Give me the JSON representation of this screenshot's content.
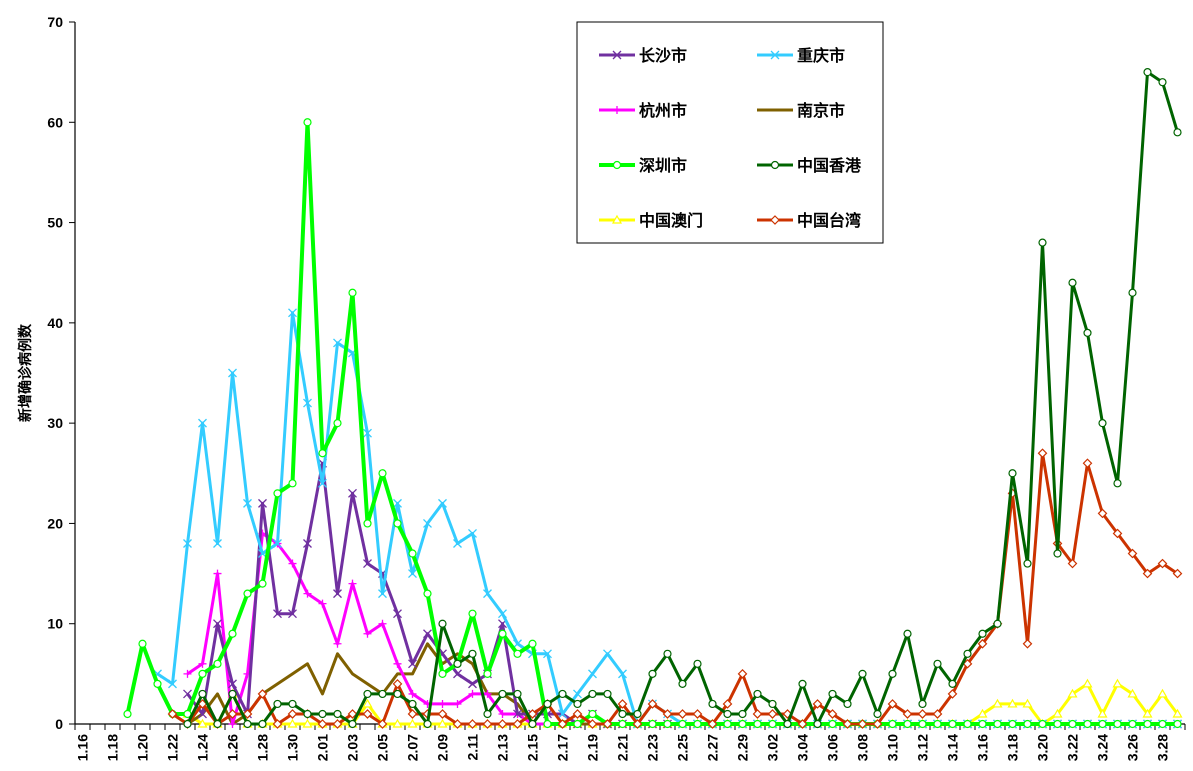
{
  "chart_data": {
    "type": "line",
    "ylabel": "新增确诊病例数",
    "ylim": [
      0,
      70
    ],
    "yticks": [
      0,
      10,
      20,
      30,
      40,
      50,
      60,
      70
    ],
    "ytick_labels": [
      "0",
      "10",
      "20",
      "30",
      "40",
      "50",
      "60",
      "70"
    ],
    "x": [
      "1.16",
      "1.17",
      "1.18",
      "1.19",
      "1.20",
      "1.21",
      "1.22",
      "1.23",
      "1.24",
      "1.25",
      "1.26",
      "1.27",
      "1.28",
      "1.29",
      "1.30",
      "1.31",
      "2.01",
      "2.02",
      "2.03",
      "2.04",
      "2.05",
      "2.06",
      "2.07",
      "2.08",
      "2.09",
      "2.10",
      "2.11",
      "2.12",
      "2.13",
      "2.14",
      "2.15",
      "2.16",
      "2.17",
      "2.18",
      "2.19",
      "2.20",
      "2.21",
      "2.22",
      "2.23",
      "2.24",
      "2.25",
      "2.26",
      "2.27",
      "2.28",
      "2.29",
      "3.01",
      "3.02",
      "3.03",
      "3.04",
      "3.05",
      "3.06",
      "3.07",
      "3.08",
      "3.09",
      "3.10",
      "3.11",
      "3.12",
      "3.13",
      "3.14",
      "3.15",
      "3.16",
      "3.17",
      "3.18",
      "3.19",
      "3.20",
      "3.21",
      "3.22",
      "3.23",
      "3.24",
      "3.25",
      "3.26",
      "3.27",
      "3.28",
      "3.29"
    ],
    "x_tick_labels": [
      "1.16",
      "1.18",
      "1.20",
      "1.22",
      "1.24",
      "1.26",
      "1.28",
      "1.30",
      "2.01",
      "2.03",
      "2.05",
      "2.07",
      "2.09",
      "2.11",
      "2.13",
      "2.15",
      "2.17",
      "2.19",
      "2.21",
      "2.23",
      "2.25",
      "2.27",
      "2.29",
      "3.02",
      "3.04",
      "3.06",
      "3.08",
      "3.10",
      "3.12",
      "3.14",
      "3.16",
      "3.18",
      "3.20",
      "3.22",
      "3.24",
      "3.26",
      "3.28"
    ],
    "legend_position": "top-center",
    "grid": false,
    "series": [
      {
        "name": "长沙市",
        "color": "#7030A0",
        "marker": "x",
        "width": 3,
        "values": [
          null,
          null,
          null,
          null,
          null,
          null,
          null,
          3,
          1,
          10,
          4,
          1,
          22,
          11,
          11,
          18,
          26,
          13,
          23,
          16,
          15,
          11,
          6,
          9,
          7,
          5,
          4,
          5,
          10,
          1,
          1,
          1,
          1,
          0,
          1,
          0,
          0,
          0,
          0,
          0,
          0,
          0,
          0,
          0,
          0,
          0,
          0,
          0,
          0,
          0,
          0,
          0,
          0,
          0,
          0,
          0,
          0,
          0,
          0,
          0,
          0,
          0,
          0,
          0,
          0,
          0,
          0,
          0,
          0,
          0,
          0,
          0,
          0,
          0
        ]
      },
      {
        "name": "重庆市",
        "color": "#33CCFF",
        "marker": "x",
        "width": 3,
        "values": [
          null,
          null,
          null,
          null,
          null,
          5,
          4,
          18,
          30,
          18,
          35,
          22,
          17,
          18,
          41,
          32,
          24,
          38,
          37,
          29,
          13,
          22,
          15,
          20,
          22,
          18,
          19,
          13,
          11,
          8,
          7,
          7,
          1,
          3,
          5,
          7,
          5,
          0,
          2,
          1,
          0,
          0,
          0,
          0,
          0,
          0,
          0,
          0,
          0,
          0,
          0,
          0,
          0,
          0,
          0,
          0,
          0,
          0,
          0,
          0,
          0,
          0,
          0,
          0,
          0,
          0,
          0,
          0,
          0,
          0,
          0,
          0,
          0,
          0
        ]
      },
      {
        "name": "杭州市",
        "color": "#FF00FF",
        "marker": "+",
        "width": 3,
        "values": [
          null,
          null,
          null,
          null,
          null,
          null,
          null,
          5,
          6,
          15,
          0,
          5,
          19,
          18,
          16,
          13,
          12,
          8,
          14,
          9,
          10,
          6,
          3,
          2,
          2,
          2,
          3,
          3,
          1,
          1,
          0,
          0,
          0,
          0,
          1,
          0,
          0,
          0,
          0,
          0,
          0,
          0,
          0,
          0,
          0,
          0,
          0,
          0,
          0,
          0,
          0,
          0,
          0,
          0,
          0,
          0,
          0,
          0,
          0,
          0,
          0,
          0,
          0,
          0,
          0,
          0,
          0,
          0,
          0,
          0,
          0,
          0,
          0,
          0
        ]
      },
      {
        "name": "南京市",
        "color": "#7F6000",
        "marker": "none",
        "width": 3,
        "values": [
          null,
          null,
          null,
          null,
          null,
          null,
          1,
          0,
          1,
          3,
          0,
          1,
          3,
          4,
          5,
          6,
          3,
          7,
          5,
          4,
          3,
          5,
          5,
          8,
          6,
          7,
          6,
          3,
          3,
          2,
          0,
          0,
          0,
          0,
          0,
          0,
          0,
          0,
          0,
          0,
          0,
          0,
          0,
          0,
          0,
          0,
          0,
          0,
          0,
          0,
          0,
          0,
          0,
          0,
          0,
          0,
          0,
          0,
          0,
          0,
          0,
          0,
          0,
          0,
          0,
          0,
          0,
          0,
          0,
          0,
          0,
          0,
          0,
          0
        ]
      },
      {
        "name": "深圳市",
        "color": "#00FF00",
        "marker": "o",
        "width": 4,
        "values": [
          null,
          null,
          null,
          1,
          8,
          4,
          1,
          1,
          5,
          6,
          9,
          13,
          14,
          23,
          24,
          60,
          27,
          30,
          43,
          20,
          25,
          20,
          17,
          13,
          5,
          6,
          11,
          5,
          9,
          7,
          8,
          0,
          0,
          0,
          1,
          0,
          0,
          0,
          0,
          0,
          0,
          0,
          0,
          0,
          0,
          0,
          0,
          0,
          0,
          0,
          0,
          0,
          0,
          0,
          0,
          0,
          0,
          0,
          0,
          0,
          0,
          0,
          0,
          0,
          0,
          0,
          0,
          0,
          0,
          0,
          0,
          0,
          0,
          0
        ]
      },
      {
        "name": "中国香港",
        "color": "#006400",
        "marker": "o",
        "width": 3,
        "values": [
          null,
          null,
          null,
          null,
          null,
          null,
          null,
          0,
          3,
          0,
          3,
          0,
          0,
          2,
          2,
          1,
          1,
          1,
          0,
          3,
          3,
          3,
          2,
          0,
          10,
          6,
          7,
          1,
          3,
          3,
          0,
          2,
          3,
          2,
          3,
          3,
          1,
          1,
          5,
          7,
          4,
          6,
          2,
          1,
          1,
          3,
          2,
          0,
          4,
          0,
          3,
          2,
          5,
          1,
          5,
          9,
          2,
          6,
          4,
          7,
          9,
          10,
          25,
          16,
          48,
          17,
          44,
          39,
          30,
          24,
          43,
          65,
          64,
          59
        ]
      },
      {
        "name": "中国澳门",
        "color": "#FFFF00",
        "marker": "triangle",
        "width": 3,
        "values": [
          null,
          null,
          null,
          null,
          null,
          null,
          null,
          1,
          0,
          0,
          3,
          0,
          0,
          0,
          0,
          0,
          0,
          0,
          0,
          2,
          0,
          0,
          0,
          0,
          0,
          0,
          0,
          0,
          0,
          0,
          0,
          0,
          0,
          0,
          0,
          0,
          0,
          0,
          0,
          0,
          0,
          0,
          0,
          0,
          0,
          0,
          0,
          0,
          0,
          0,
          0,
          0,
          0,
          0,
          0,
          0,
          0,
          0,
          0,
          0,
          1,
          2,
          2,
          2,
          0,
          1,
          3,
          4,
          1,
          4,
          3,
          1,
          3,
          1
        ]
      },
      {
        "name": "中国台湾",
        "color": "#CC3300",
        "marker": "diamond",
        "width": 3,
        "values": [
          null,
          null,
          null,
          null,
          null,
          null,
          1,
          0,
          2,
          0,
          1,
          1,
          3,
          0,
          1,
          1,
          0,
          0,
          1,
          1,
          0,
          4,
          1,
          1,
          1,
          0,
          0,
          0,
          0,
          0,
          1,
          2,
          0,
          1,
          0,
          0,
          2,
          0,
          2,
          1,
          1,
          1,
          0,
          2,
          5,
          1,
          1,
          1,
          0,
          2,
          1,
          0,
          0,
          0,
          2,
          1,
          1,
          1,
          3,
          6,
          8,
          10,
          23,
          8,
          27,
          18,
          16,
          26,
          21,
          19,
          17,
          15,
          16,
          15
        ]
      }
    ]
  }
}
